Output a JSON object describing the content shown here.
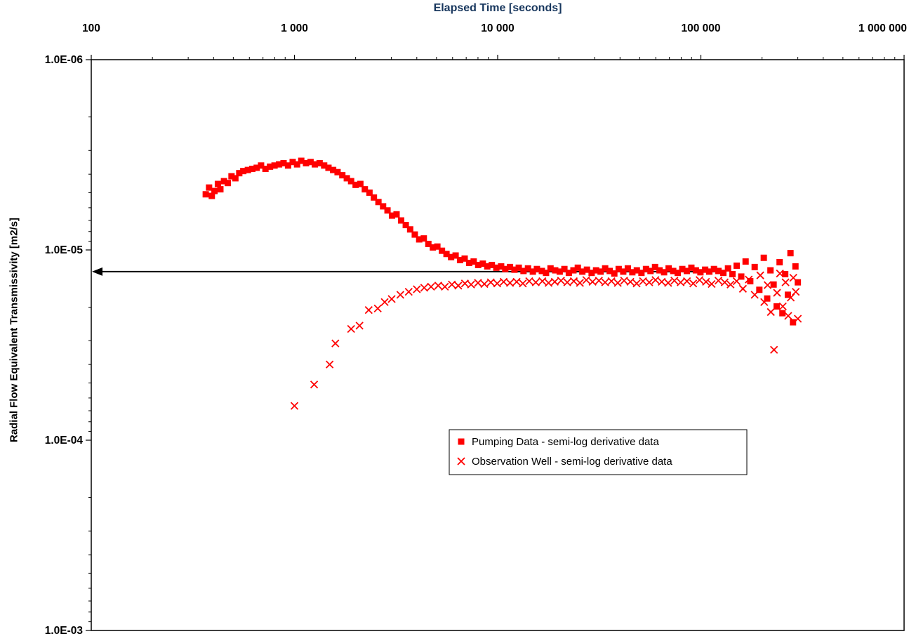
{
  "colors": {
    "title": "#17365D",
    "axis": "#000000",
    "series": "#FF0000",
    "background": "#FFFFFF"
  },
  "chart_data": {
    "type": "scatter",
    "title": "Elapsed Time [seconds]",
    "xlabel": "Elapsed Time [seconds]",
    "ylabel": "Radial Flow Equivalent Transmissivity [m2/s]",
    "grid": false,
    "x_axis": {
      "scale": "log",
      "min": 100,
      "max": 1000000,
      "position": "top",
      "tick_values": [
        100,
        1000,
        10000,
        100000,
        1000000
      ],
      "tick_labels": [
        "100",
        "1 000",
        "10 000",
        "100 000",
        "1 000 000"
      ]
    },
    "y_axis": {
      "scale": "log",
      "inverted": true,
      "min": 1e-06,
      "max": 0.001,
      "position": "left",
      "tick_values": [
        1e-06,
        1e-05,
        0.0001,
        0.001
      ],
      "tick_labels": [
        "1.0E-06",
        "1.0E-05",
        "1.0E-04",
        "1.0E-03"
      ]
    },
    "reference_line": {
      "value": 1.3e-05,
      "t_start": 100,
      "t_end": 120000,
      "color": "#000000",
      "arrow": "left"
    },
    "legend": {
      "position": "inside-lower-middle",
      "border": "#000000",
      "fill": "#FFFFFF"
    },
    "series": [
      {
        "name": "Pumping Data - semi-log derivative data",
        "marker": "square",
        "color": "#FF0000",
        "points": [
          [
            366,
            5.1e-06
          ],
          [
            380,
            4.7e-06
          ],
          [
            392,
            5.2e-06
          ],
          [
            404,
            4.9e-06
          ],
          [
            420,
            4.5e-06
          ],
          [
            432,
            4.8e-06
          ],
          [
            450,
            4.35e-06
          ],
          [
            470,
            4.45e-06
          ],
          [
            490,
            4.1e-06
          ],
          [
            512,
            4.2e-06
          ],
          [
            535,
            3.95e-06
          ],
          [
            560,
            3.85e-06
          ],
          [
            590,
            3.8e-06
          ],
          [
            620,
            3.75e-06
          ],
          [
            652,
            3.7e-06
          ],
          [
            685,
            3.6e-06
          ],
          [
            720,
            3.75e-06
          ],
          [
            758,
            3.65e-06
          ],
          [
            798,
            3.6e-06
          ],
          [
            840,
            3.55e-06
          ],
          [
            884,
            3.5e-06
          ],
          [
            930,
            3.6e-06
          ],
          [
            980,
            3.45e-06
          ],
          [
            1030,
            3.55e-06
          ],
          [
            1080,
            3.4e-06
          ],
          [
            1140,
            3.5e-06
          ],
          [
            1200,
            3.45e-06
          ],
          [
            1260,
            3.55e-06
          ],
          [
            1330,
            3.5e-06
          ],
          [
            1400,
            3.6e-06
          ],
          [
            1470,
            3.7e-06
          ],
          [
            1550,
            3.8e-06
          ],
          [
            1630,
            3.9e-06
          ],
          [
            1720,
            4.05e-06
          ],
          [
            1810,
            4.2e-06
          ],
          [
            1900,
            4.35e-06
          ],
          [
            2000,
            4.55e-06
          ],
          [
            2110,
            4.5e-06
          ],
          [
            2220,
            4.8e-06
          ],
          [
            2340,
            5e-06
          ],
          [
            2460,
            5.3e-06
          ],
          [
            2590,
            5.6e-06
          ],
          [
            2730,
            5.9e-06
          ],
          [
            2870,
            6.2e-06
          ],
          [
            3020,
            6.6e-06
          ],
          [
            3180,
            6.5e-06
          ],
          [
            3350,
            7e-06
          ],
          [
            3530,
            7.4e-06
          ],
          [
            3710,
            7.8e-06
          ],
          [
            3910,
            8.3e-06
          ],
          [
            4110,
            8.8e-06
          ],
          [
            4330,
            8.7e-06
          ],
          [
            4560,
            9.3e-06
          ],
          [
            4800,
            9.7e-06
          ],
          [
            5050,
            9.6e-06
          ],
          [
            5320,
            1.01e-05
          ],
          [
            5600,
            1.05e-05
          ],
          [
            5900,
            1.09e-05
          ],
          [
            6210,
            1.07e-05
          ],
          [
            6530,
            1.13e-05
          ],
          [
            6880,
            1.11e-05
          ],
          [
            7240,
            1.17e-05
          ],
          [
            7620,
            1.15e-05
          ],
          [
            8020,
            1.2e-05
          ],
          [
            8450,
            1.18e-05
          ],
          [
            8890,
            1.22e-05
          ],
          [
            9360,
            1.2e-05
          ],
          [
            9850,
            1.24e-05
          ],
          [
            10400,
            1.22e-05
          ],
          [
            10900,
            1.26e-05
          ],
          [
            11500,
            1.23e-05
          ],
          [
            12100,
            1.27e-05
          ],
          [
            12700,
            1.24e-05
          ],
          [
            13400,
            1.29e-05
          ],
          [
            14100,
            1.25e-05
          ],
          [
            14900,
            1.3e-05
          ],
          [
            15600,
            1.26e-05
          ],
          [
            16500,
            1.29e-05
          ],
          [
            17300,
            1.32e-05
          ],
          [
            18200,
            1.25e-05
          ],
          [
            19200,
            1.28e-05
          ],
          [
            20200,
            1.3e-05
          ],
          [
            21300,
            1.26e-05
          ],
          [
            22400,
            1.32e-05
          ],
          [
            23600,
            1.28e-05
          ],
          [
            24800,
            1.24e-05
          ],
          [
            26100,
            1.3e-05
          ],
          [
            27500,
            1.27e-05
          ],
          [
            29000,
            1.32e-05
          ],
          [
            30500,
            1.28e-05
          ],
          [
            32100,
            1.3e-05
          ],
          [
            33800,
            1.25e-05
          ],
          [
            35600,
            1.29e-05
          ],
          [
            37500,
            1.33e-05
          ],
          [
            39400,
            1.26e-05
          ],
          [
            41500,
            1.3e-05
          ],
          [
            43700,
            1.25e-05
          ],
          [
            46000,
            1.31e-05
          ],
          [
            48400,
            1.28e-05
          ],
          [
            51000,
            1.32e-05
          ],
          [
            53700,
            1.26e-05
          ],
          [
            56500,
            1.29e-05
          ],
          [
            59500,
            1.23e-05
          ],
          [
            62600,
            1.28e-05
          ],
          [
            65900,
            1.31e-05
          ],
          [
            69400,
            1.25e-05
          ],
          [
            73100,
            1.29e-05
          ],
          [
            76900,
            1.32e-05
          ],
          [
            81000,
            1.26e-05
          ],
          [
            85300,
            1.29e-05
          ],
          [
            89800,
            1.24e-05
          ],
          [
            94500,
            1.28e-05
          ],
          [
            99500,
            1.31e-05
          ],
          [
            105000,
            1.27e-05
          ],
          [
            110000,
            1.3e-05
          ],
          [
            116000,
            1.26e-05
          ],
          [
            122000,
            1.29e-05
          ],
          [
            129000,
            1.32e-05
          ],
          [
            136000,
            1.25e-05
          ],
          [
            143000,
            1.34e-05
          ],
          [
            150000,
            1.21e-05
          ],
          [
            158000,
            1.38e-05
          ],
          [
            166000,
            1.15e-05
          ],
          [
            175000,
            1.46e-05
          ],
          [
            184000,
            1.23e-05
          ],
          [
            194000,
            1.62e-05
          ],
          [
            204000,
            1.1e-05
          ],
          [
            212000,
            1.8e-05
          ],
          [
            220000,
            1.28e-05
          ],
          [
            228000,
            1.52e-05
          ],
          [
            236000,
            1.98e-05
          ],
          [
            244000,
            1.16e-05
          ],
          [
            252000,
            2.15e-05
          ],
          [
            260000,
            1.34e-05
          ],
          [
            268000,
            1.72e-05
          ],
          [
            276000,
            1.04e-05
          ],
          [
            284000,
            2.4e-05
          ],
          [
            292000,
            1.22e-05
          ],
          [
            300000,
            1.48e-05
          ]
        ]
      },
      {
        "name": "Observation Well - semi-log derivative data",
        "marker": "x",
        "color": "#FF0000",
        "points": [
          [
            1000,
            6.6e-05
          ],
          [
            1250,
            5.1e-05
          ],
          [
            1490,
            4e-05
          ],
          [
            1590,
            3.1e-05
          ],
          [
            1900,
            2.6e-05
          ],
          [
            2090,
            2.5e-05
          ],
          [
            2320,
            2.07e-05
          ],
          [
            2570,
            2.03e-05
          ],
          [
            2780,
            1.88e-05
          ],
          [
            3010,
            1.81e-05
          ],
          [
            3320,
            1.72e-05
          ],
          [
            3650,
            1.66e-05
          ],
          [
            4000,
            1.61e-05
          ],
          [
            4350,
            1.58e-05
          ],
          [
            4700,
            1.56e-05
          ],
          [
            5100,
            1.54e-05
          ],
          [
            5500,
            1.56e-05
          ],
          [
            5950,
            1.52e-05
          ],
          [
            6400,
            1.54e-05
          ],
          [
            6900,
            1.5e-05
          ],
          [
            7400,
            1.52e-05
          ],
          [
            8000,
            1.49e-05
          ],
          [
            8600,
            1.51e-05
          ],
          [
            9250,
            1.48e-05
          ],
          [
            9950,
            1.5e-05
          ],
          [
            10700,
            1.47e-05
          ],
          [
            11500,
            1.49e-05
          ],
          [
            12400,
            1.47e-05
          ],
          [
            13300,
            1.5e-05
          ],
          [
            14300,
            1.46e-05
          ],
          [
            15400,
            1.48e-05
          ],
          [
            16600,
            1.46e-05
          ],
          [
            17800,
            1.49e-05
          ],
          [
            19100,
            1.47e-05
          ],
          [
            20500,
            1.45e-05
          ],
          [
            22000,
            1.48e-05
          ],
          [
            23700,
            1.46e-05
          ],
          [
            25400,
            1.49e-05
          ],
          [
            27300,
            1.44e-05
          ],
          [
            29300,
            1.47e-05
          ],
          [
            31500,
            1.45e-05
          ],
          [
            33800,
            1.48e-05
          ],
          [
            36300,
            1.46e-05
          ],
          [
            39000,
            1.49e-05
          ],
          [
            41900,
            1.45e-05
          ],
          [
            45000,
            1.47e-05
          ],
          [
            48300,
            1.5e-05
          ],
          [
            51900,
            1.46e-05
          ],
          [
            55700,
            1.48e-05
          ],
          [
            59800,
            1.44e-05
          ],
          [
            64200,
            1.47e-05
          ],
          [
            69000,
            1.49e-05
          ],
          [
            74100,
            1.45e-05
          ],
          [
            79500,
            1.48e-05
          ],
          [
            85400,
            1.46e-05
          ],
          [
            91700,
            1.5e-05
          ],
          [
            98500,
            1.44e-05
          ],
          [
            106000,
            1.47e-05
          ],
          [
            113000,
            1.51e-05
          ],
          [
            122000,
            1.45e-05
          ],
          [
            131000,
            1.48e-05
          ],
          [
            140000,
            1.52e-05
          ],
          [
            150000,
            1.46e-05
          ],
          [
            161000,
            1.6e-05
          ],
          [
            172000,
            1.43e-05
          ],
          [
            184000,
            1.72e-05
          ],
          [
            196000,
            1.36e-05
          ],
          [
            205000,
            1.88e-05
          ],
          [
            213000,
            1.53e-05
          ],
          [
            221000,
            2.12e-05
          ],
          [
            229000,
            3.35e-05
          ],
          [
            237000,
            1.68e-05
          ],
          [
            245000,
            1.33e-05
          ],
          [
            253000,
            1.98e-05
          ],
          [
            261000,
            1.48e-05
          ],
          [
            269000,
            2.22e-05
          ],
          [
            277000,
            1.78e-05
          ],
          [
            285000,
            1.4e-05
          ],
          [
            293000,
            1.66e-05
          ],
          [
            300000,
            2.3e-05
          ]
        ]
      }
    ]
  }
}
